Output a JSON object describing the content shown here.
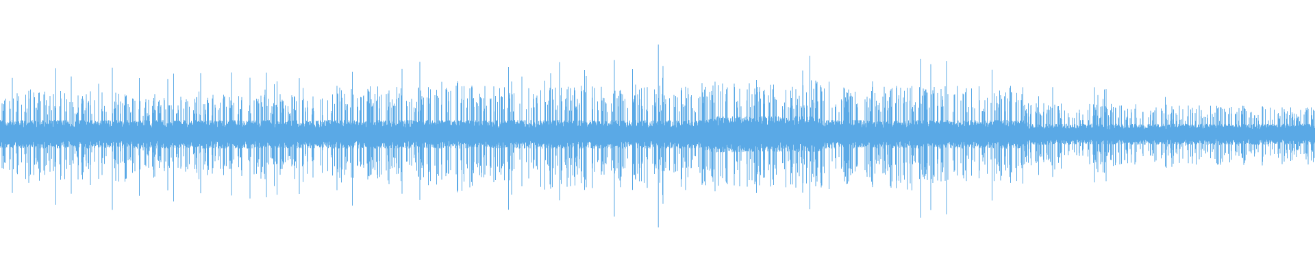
{
  "chart_data": {
    "type": "waveform",
    "color": "#5aa9e6"
  }
}
